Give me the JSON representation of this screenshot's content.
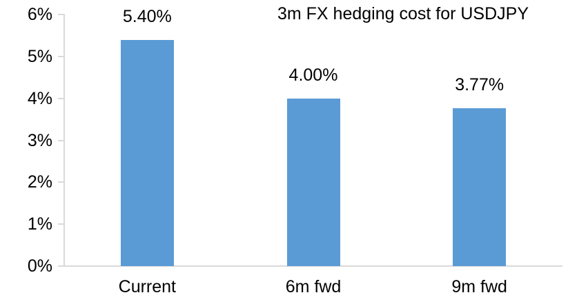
{
  "title": "3m FX hedging cost for USDJPY",
  "colors": {
    "bar": "#5B9BD5",
    "axis": "#D9D9D9",
    "text": "#000000",
    "background": "#FFFFFF"
  },
  "chart_data": {
    "type": "bar",
    "title": "3m FX hedging cost for USDJPY",
    "categories": [
      "Current",
      "6m fwd",
      "9m fwd"
    ],
    "values": [
      5.4,
      4.0,
      3.77
    ],
    "data_labels": [
      "5.40%",
      "4.00%",
      "3.77%"
    ],
    "xlabel": "",
    "ylabel": "",
    "ylim": [
      0,
      6
    ],
    "ytick_step": 1,
    "ytick_labels": [
      "0%",
      "1%",
      "2%",
      "3%",
      "4%",
      "5%",
      "6%"
    ],
    "grid": false,
    "legend": "none",
    "bar_color": "#5B9BD5"
  }
}
